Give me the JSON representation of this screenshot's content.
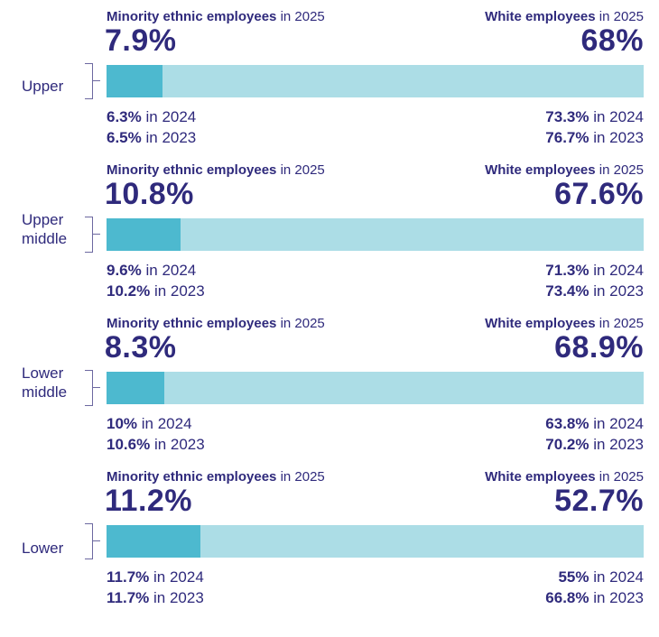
{
  "chart_data": {
    "type": "bar",
    "stacked_horizontal": true,
    "colors": {
      "text": "#2f2a7c",
      "minority": "#4db9cf",
      "white": "#acdde6"
    },
    "minority_label_bold": "Minority ethnic employees",
    "white_label_bold": "White employees",
    "year_suffix": "in 2025",
    "categories": [
      {
        "name": "Upper",
        "minority_2025": "7.9%",
        "white_2025": "68%",
        "minority_value": 7.9,
        "white_value": 68,
        "minority_prev": [
          {
            "value": "6.3%",
            "suffix": "in 2024"
          },
          {
            "value": "6.5%",
            "suffix": "in 2023"
          }
        ],
        "white_prev": [
          {
            "value": "73.3%",
            "suffix": "in 2024"
          },
          {
            "value": "76.7%",
            "suffix": "in 2023"
          }
        ]
      },
      {
        "name": "Upper middle",
        "minority_2025": "10.8%",
        "white_2025": "67.6%",
        "minority_value": 10.8,
        "white_value": 67.6,
        "minority_prev": [
          {
            "value": "9.6%",
            "suffix": "in 2024"
          },
          {
            "value": "10.2%",
            "suffix": "in 2023"
          }
        ],
        "white_prev": [
          {
            "value": "71.3%",
            "suffix": "in 2024"
          },
          {
            "value": "73.4%",
            "suffix": "in 2023"
          }
        ]
      },
      {
        "name": "Lower middle",
        "minority_2025": "8.3%",
        "white_2025": "68.9%",
        "minority_value": 8.3,
        "white_value": 68.9,
        "minority_prev": [
          {
            "value": "10%",
            "suffix": "in 2024"
          },
          {
            "value": "10.6%",
            "suffix": "in 2023"
          }
        ],
        "white_prev": [
          {
            "value": "63.8%",
            "suffix": "in 2024"
          },
          {
            "value": "70.2%",
            "suffix": "in 2023"
          }
        ]
      },
      {
        "name": "Lower",
        "minority_2025": "11.2%",
        "white_2025": "52.7%",
        "minority_value": 11.2,
        "white_value": 52.7,
        "minority_prev": [
          {
            "value": "11.7%",
            "suffix": "in 2024"
          },
          {
            "value": "11.7%",
            "suffix": "in 2023"
          }
        ],
        "white_prev": [
          {
            "value": "55%",
            "suffix": "in 2024"
          },
          {
            "value": "66.8%",
            "suffix": "in 2023"
          }
        ]
      }
    ]
  }
}
